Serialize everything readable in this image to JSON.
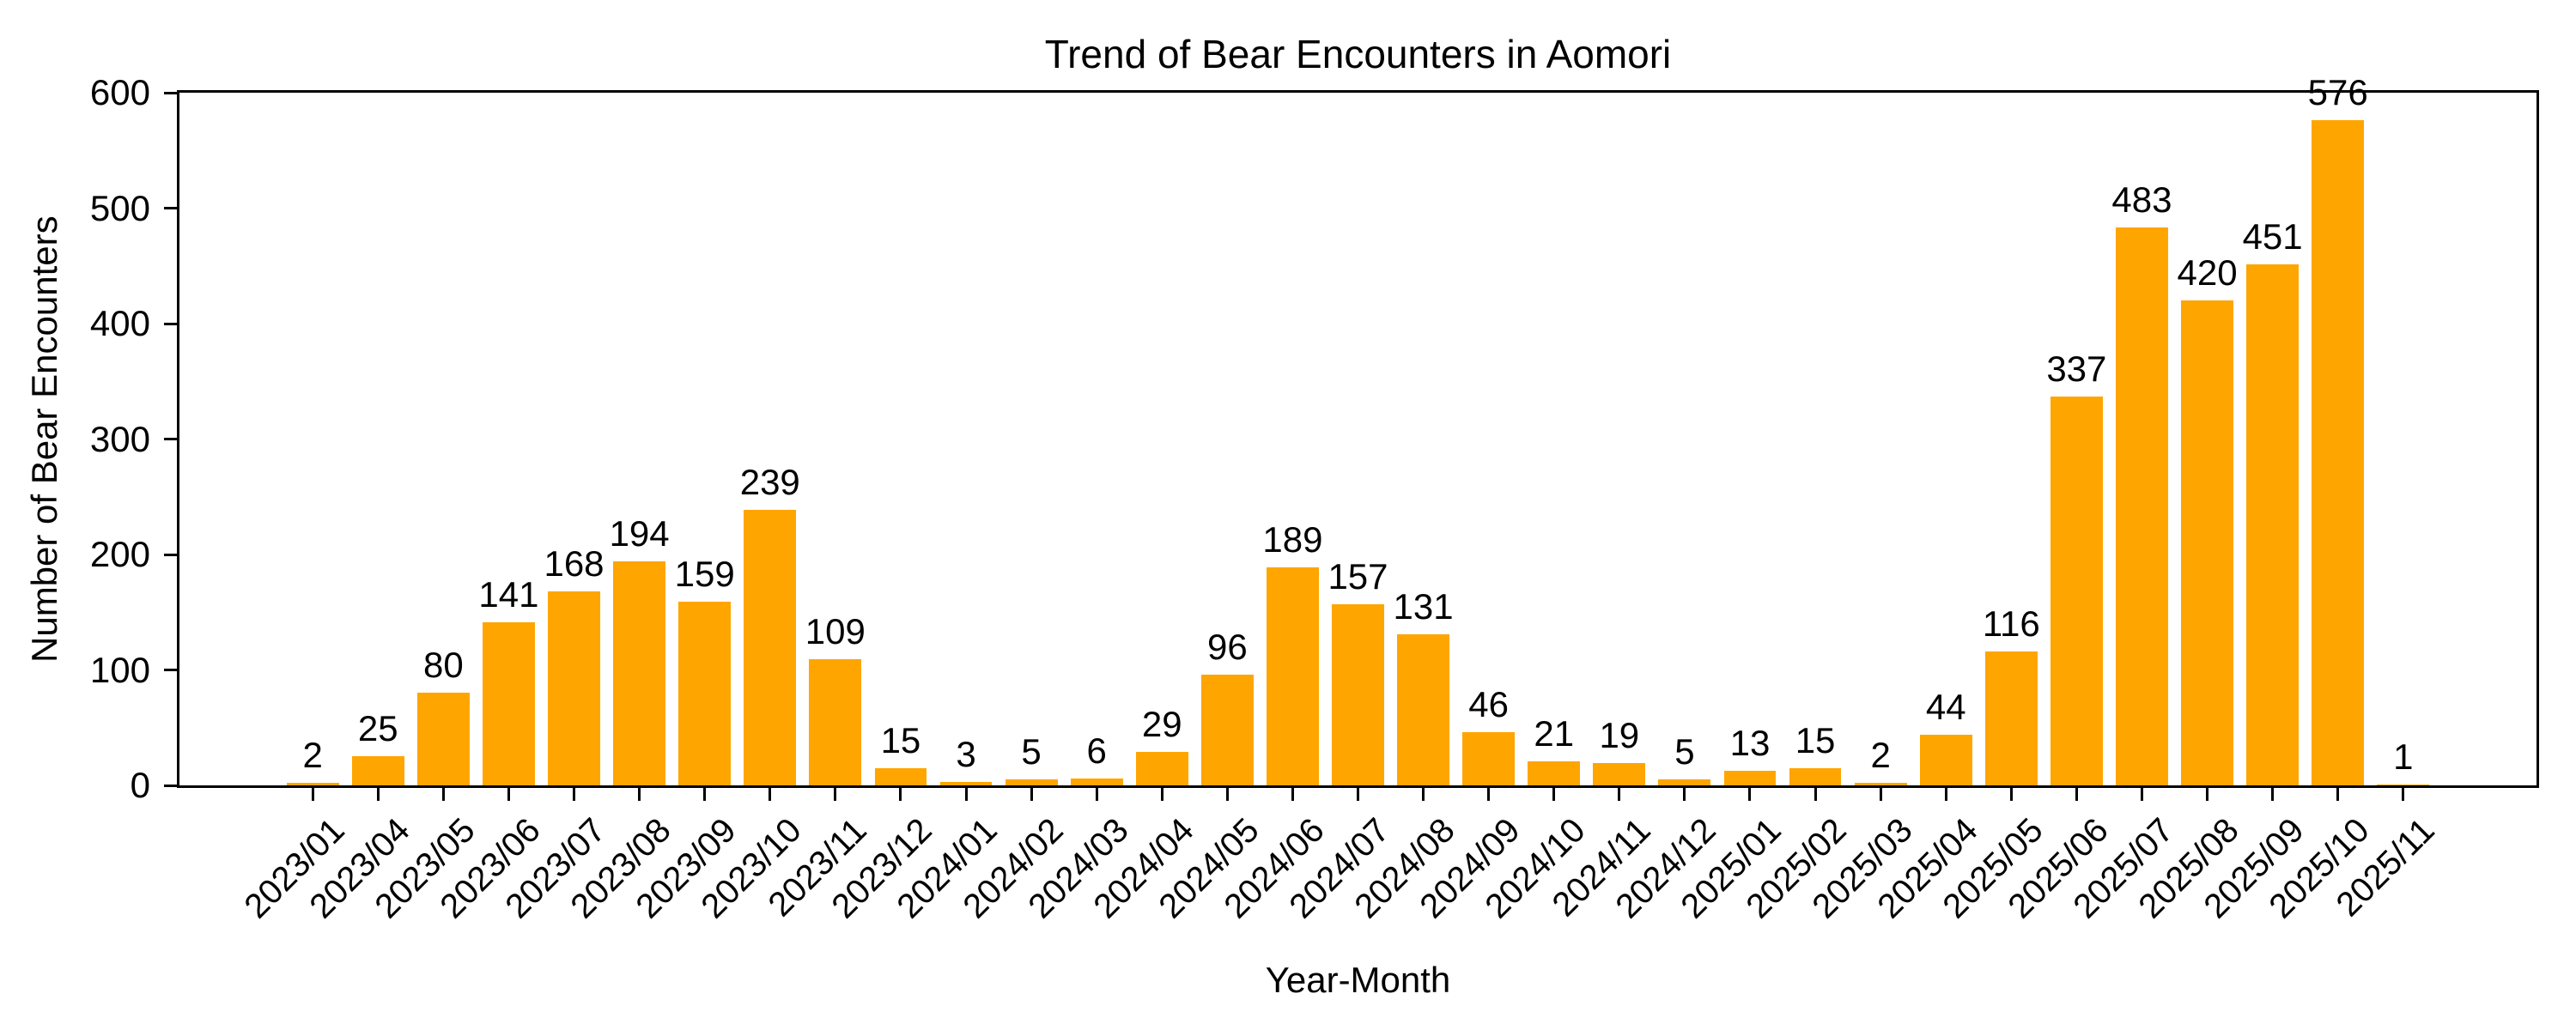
{
  "chart_data": {
    "type": "bar",
    "title": "Trend of Bear Encounters in Aomori",
    "xlabel": "Year-Month",
    "ylabel": "Number of Bear Encounters",
    "categories": [
      "2023/01",
      "2023/04",
      "2023/05",
      "2023/06",
      "2023/07",
      "2023/08",
      "2023/09",
      "2023/10",
      "2023/11",
      "2023/12",
      "2024/01",
      "2024/02",
      "2024/03",
      "2024/04",
      "2024/05",
      "2024/06",
      "2024/07",
      "2024/08",
      "2024/09",
      "2024/10",
      "2024/11",
      "2024/12",
      "2025/01",
      "2025/02",
      "2025/03",
      "2025/04",
      "2025/05",
      "2025/06",
      "2025/07",
      "2025/08",
      "2025/09",
      "2025/10",
      "2025/11"
    ],
    "values": [
      2,
      25,
      80,
      141,
      168,
      194,
      159,
      239,
      109,
      15,
      3,
      5,
      6,
      29,
      96,
      189,
      157,
      131,
      46,
      21,
      19,
      5,
      13,
      15,
      2,
      44,
      116,
      337,
      483,
      420,
      451,
      576,
      1
    ],
    "ylim": [
      0,
      600
    ],
    "yticks": [
      0,
      100,
      200,
      300,
      400,
      500,
      600
    ],
    "bar_color": "#FFA500",
    "value_labels": true,
    "grid": false,
    "legend": null,
    "x_tick_rotation_deg": 45
  }
}
